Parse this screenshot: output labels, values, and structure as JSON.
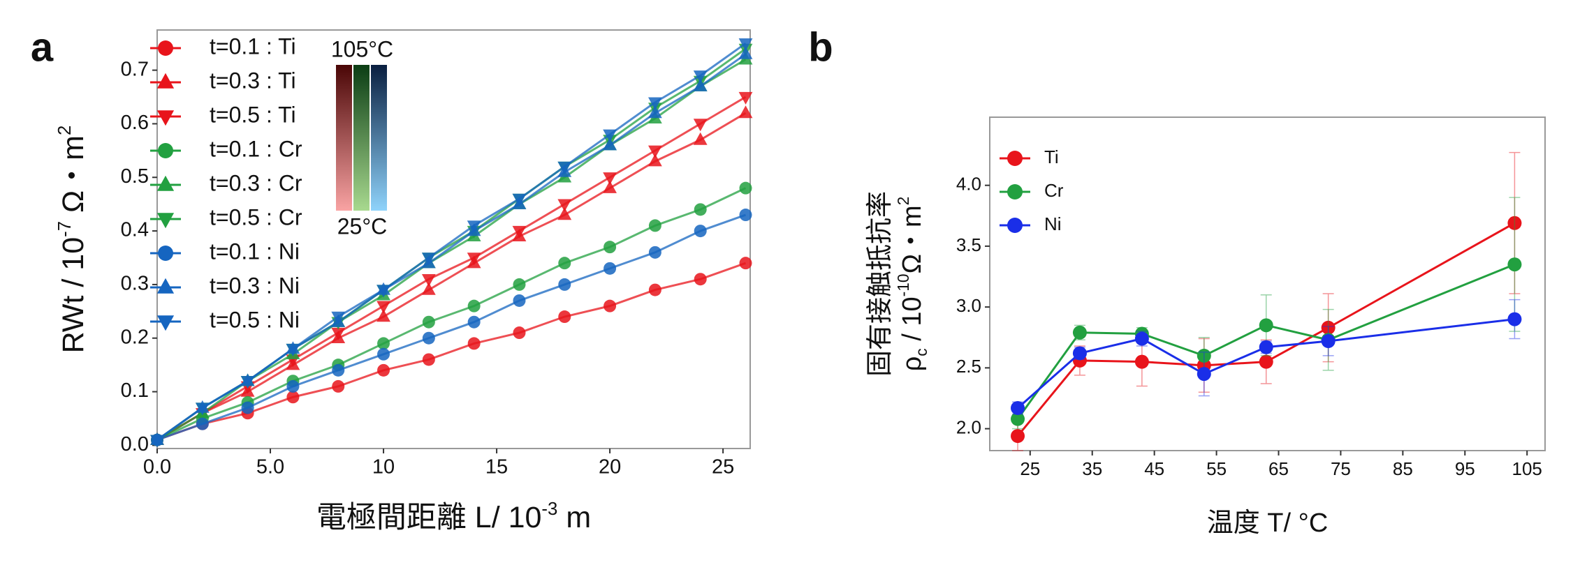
{
  "chart_data": [
    {
      "type": "line",
      "panel_label": "a",
      "xlabel": [
        {
          "text": "電極間距離 L/ 10"
        },
        {
          "text": "-3",
          "sup": true
        },
        {
          "text": " m"
        }
      ],
      "ylabel": [
        {
          "text": "RWt / 10"
        },
        {
          "text": "-7",
          "sup": true
        },
        {
          "text": " Ω・m"
        },
        {
          "text": "2",
          "sup": true
        }
      ],
      "x": [
        0,
        2,
        4,
        6,
        8,
        10,
        12,
        14,
        16,
        18,
        20,
        22,
        24,
        26
      ],
      "xlim": [
        0,
        26.2
      ],
      "ylim": [
        -0.006,
        0.775
      ],
      "xticks": [
        {
          "value": 0,
          "label": "0.0"
        },
        {
          "value": 5,
          "label": "5.0"
        },
        10,
        15,
        20,
        25
      ],
      "yticks": [
        {
          "value": 0,
          "label": "0.0"
        },
        0.1,
        0.2,
        0.3,
        0.4,
        0.5,
        0.6,
        0.7
      ],
      "legend": "upper left",
      "colorbar_labels": [
        "105°C",
        "25°C"
      ],
      "colorbar_colors": [
        [
          "#4a0606",
          "#f9a3a3"
        ],
        [
          "#0b3d14",
          "#a8d98f"
        ],
        [
          "#0a1f40",
          "#8fd3fb"
        ]
      ],
      "series": [
        {
          "name": "t=0.1 : Ti",
          "color": "#e8141b",
          "marker": "circle",
          "values": [
            0.01,
            0.04,
            0.06,
            0.09,
            0.11,
            0.14,
            0.16,
            0.19,
            0.21,
            0.24,
            0.26,
            0.29,
            0.31,
            0.34
          ]
        },
        {
          "name": "t=0.3 : Ti",
          "color": "#e8141b",
          "marker": "triangle-up",
          "values": [
            0.01,
            0.06,
            0.1,
            0.15,
            0.2,
            0.24,
            0.29,
            0.34,
            0.39,
            0.43,
            0.48,
            0.53,
            0.57,
            0.62
          ]
        },
        {
          "name": "t=0.5 : Ti",
          "color": "#e8141b",
          "marker": "triangle-down",
          "values": [
            0.01,
            0.06,
            0.11,
            0.16,
            0.21,
            0.26,
            0.31,
            0.35,
            0.4,
            0.45,
            0.5,
            0.55,
            0.6,
            0.65
          ]
        },
        {
          "name": "t=0.1 : Cr",
          "color": "#22a040",
          "marker": "circle",
          "values": [
            0.01,
            0.05,
            0.08,
            0.12,
            0.15,
            0.19,
            0.23,
            0.26,
            0.3,
            0.34,
            0.37,
            0.41,
            0.44,
            0.48
          ]
        },
        {
          "name": "t=0.3 : Cr",
          "color": "#22a040",
          "marker": "triangle-up",
          "values": [
            0.01,
            0.06,
            0.12,
            0.17,
            0.23,
            0.28,
            0.34,
            0.39,
            0.45,
            0.5,
            0.56,
            0.61,
            0.67,
            0.72
          ]
        },
        {
          "name": "t=0.5 : Cr",
          "color": "#22a040",
          "marker": "triangle-down",
          "values": [
            0.01,
            0.07,
            0.12,
            0.18,
            0.23,
            0.29,
            0.35,
            0.4,
            0.46,
            0.52,
            0.57,
            0.63,
            0.68,
            0.74
          ]
        },
        {
          "name": "t=0.1 : Ni",
          "color": "#1565c0",
          "marker": "circle",
          "values": [
            0.01,
            0.04,
            0.07,
            0.11,
            0.14,
            0.17,
            0.2,
            0.23,
            0.27,
            0.3,
            0.33,
            0.36,
            0.4,
            0.43
          ]
        },
        {
          "name": "t=0.3 : Ni",
          "color": "#1565c0",
          "marker": "triangle-up",
          "values": [
            0.01,
            0.07,
            0.12,
            0.18,
            0.23,
            0.29,
            0.34,
            0.4,
            0.45,
            0.51,
            0.56,
            0.62,
            0.67,
            0.73
          ]
        },
        {
          "name": "t=0.5 : Ni",
          "color": "#1565c0",
          "marker": "triangle-down",
          "values": [
            0.01,
            0.07,
            0.12,
            0.18,
            0.24,
            0.29,
            0.35,
            0.41,
            0.46,
            0.52,
            0.58,
            0.64,
            0.69,
            0.75
          ]
        }
      ]
    },
    {
      "type": "errorline",
      "panel_label": "b",
      "xlabel": [
        {
          "text": "温度 T/ °C"
        }
      ],
      "ylabel_lines": [
        [
          {
            "text": "固有接触抵抗率"
          }
        ],
        [
          {
            "text": "ρ"
          },
          {
            "text": "c",
            "sub": true
          },
          {
            "text": " / 10"
          },
          {
            "text": "-10",
            "sup": true
          },
          {
            "text": "Ω・m"
          },
          {
            "text": "2",
            "sup": true
          }
        ]
      ],
      "x": [
        23,
        33,
        43,
        53,
        63,
        73,
        103
      ],
      "xlim": [
        18.5,
        107.9
      ],
      "ylim": [
        1.82,
        4.56
      ],
      "xticks": [
        25,
        35,
        45,
        55,
        65,
        75,
        85,
        95,
        105
      ],
      "yticks": [
        {
          "value": 2,
          "label": "2.0"
        },
        2.5,
        {
          "value": 3,
          "label": "3.0"
        },
        3.5,
        {
          "value": 4,
          "label": "4.0"
        }
      ],
      "legend": "upper left",
      "series": [
        {
          "name": "Ti",
          "color": "#e8141b",
          "values": [
            1.94,
            2.56,
            2.55,
            2.52,
            2.55,
            2.83,
            3.69
          ],
          "errors": [
            0.12,
            0.12,
            0.2,
            0.22,
            0.18,
            0.28,
            0.58
          ]
        },
        {
          "name": "Cr",
          "color": "#22a040",
          "values": [
            2.08,
            2.79,
            2.78,
            2.6,
            2.85,
            2.73,
            3.35
          ],
          "errors": [
            0.08,
            0.06,
            0.05,
            0.15,
            0.25,
            0.25,
            0.55
          ]
        },
        {
          "name": "Ni",
          "color": "#1a2ee8",
          "values": [
            2.17,
            2.62,
            2.74,
            2.45,
            2.67,
            2.72,
            2.9
          ],
          "errors": [
            0.05,
            0.05,
            0.06,
            0.18,
            0.05,
            0.12,
            0.16
          ]
        }
      ]
    }
  ]
}
